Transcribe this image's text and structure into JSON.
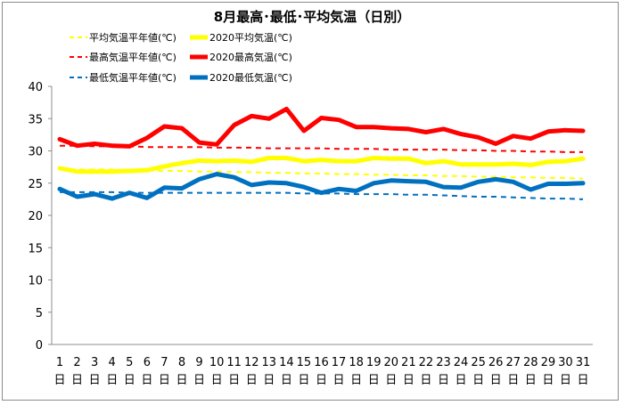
{
  "chart_data": {
    "type": "line",
    "title": "8月最高･最低･平均気温（日別）",
    "xlabel": "",
    "ylabel": "",
    "x": [
      1,
      2,
      3,
      4,
      5,
      6,
      7,
      8,
      9,
      10,
      11,
      12,
      13,
      14,
      15,
      16,
      17,
      18,
      19,
      20,
      21,
      22,
      23,
      24,
      25,
      26,
      27,
      28,
      29,
      30,
      31
    ],
    "x_suffix": "日",
    "ylim": [
      0,
      40
    ],
    "yticks": [
      0,
      5,
      10,
      15,
      20,
      25,
      30,
      35,
      40
    ],
    "grid": false,
    "legend_position": "top",
    "series": [
      {
        "name": "平均気温平年値(℃)",
        "color": "#ffff00",
        "dashed": true,
        "width": 2,
        "values": [
          27.2,
          27.1,
          27.1,
          27.1,
          27.0,
          27.0,
          26.9,
          26.9,
          26.8,
          26.8,
          26.7,
          26.7,
          26.6,
          26.6,
          26.5,
          26.5,
          26.4,
          26.4,
          26.3,
          26.3,
          26.2,
          26.2,
          26.1,
          26.1,
          26.0,
          26.0,
          25.9,
          25.9,
          25.8,
          25.8,
          25.7
        ]
      },
      {
        "name": "2020平均気温(℃)",
        "color": "#ffff00",
        "dashed": false,
        "width": 5,
        "values": [
          27.3,
          26.8,
          26.8,
          26.8,
          26.9,
          27.0,
          27.6,
          28.1,
          28.5,
          28.4,
          28.5,
          28.3,
          28.9,
          28.9,
          28.4,
          28.6,
          28.4,
          28.4,
          28.9,
          28.8,
          28.8,
          28.1,
          28.4,
          27.9,
          27.9,
          27.9,
          28.0,
          27.8,
          28.3,
          28.4,
          28.8
        ]
      },
      {
        "name": "最高気温平年値(℃)",
        "color": "#ff0000",
        "dashed": true,
        "width": 2,
        "values": [
          30.8,
          30.8,
          30.7,
          30.7,
          30.7,
          30.6,
          30.6,
          30.6,
          30.6,
          30.5,
          30.5,
          30.5,
          30.4,
          30.4,
          30.4,
          30.4,
          30.3,
          30.3,
          30.3,
          30.2,
          30.2,
          30.2,
          30.2,
          30.1,
          30.1,
          30.0,
          30.0,
          29.9,
          29.9,
          29.8,
          29.8
        ]
      },
      {
        "name": "2020最高気温(℃)",
        "color": "#ff0000",
        "dashed": false,
        "width": 5,
        "values": [
          31.8,
          30.8,
          31.1,
          30.8,
          30.7,
          32.0,
          33.8,
          33.5,
          31.3,
          31.0,
          34.0,
          35.4,
          35.0,
          36.5,
          33.1,
          35.1,
          34.8,
          33.7,
          33.7,
          33.5,
          33.4,
          32.9,
          33.4,
          32.6,
          32.1,
          31.1,
          32.3,
          31.9,
          33.0,
          33.2,
          33.1
        ]
      },
      {
        "name": "最低気温平年値(℃)",
        "color": "#0070c0",
        "dashed": true,
        "width": 2,
        "values": [
          23.6,
          23.6,
          23.6,
          23.6,
          23.5,
          23.5,
          23.5,
          23.5,
          23.5,
          23.5,
          23.5,
          23.5,
          23.5,
          23.5,
          23.4,
          23.4,
          23.4,
          23.3,
          23.3,
          23.3,
          23.2,
          23.2,
          23.1,
          23.0,
          22.9,
          22.9,
          22.8,
          22.7,
          22.6,
          22.6,
          22.5
        ]
      },
      {
        "name": "2020最低気温(℃)",
        "color": "#0070c0",
        "dashed": false,
        "width": 5,
        "values": [
          24.1,
          22.9,
          23.3,
          22.6,
          23.5,
          22.7,
          24.3,
          24.2,
          25.6,
          26.4,
          25.9,
          24.7,
          25.1,
          25.0,
          24.4,
          23.5,
          24.1,
          23.8,
          25.0,
          25.4,
          25.3,
          25.2,
          24.4,
          24.3,
          25.2,
          25.6,
          25.2,
          24.0,
          24.9,
          24.9,
          25.0
        ]
      }
    ]
  }
}
